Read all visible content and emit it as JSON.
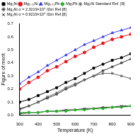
{
  "chart_data": {
    "type": "line",
    "x_label": "Temperature (K)",
    "y_label": "Figure of merit",
    "x": [
      300,
      350,
      400,
      450,
      500,
      550,
      600,
      650,
      700,
      750,
      800,
      850,
      900
    ],
    "xlim": [
      300,
      900
    ],
    "xticks": [
      300,
      400,
      500,
      600,
      700,
      800,
      900
    ],
    "ylim": [
      0,
      0.7
    ],
    "yticks": [
      {
        "value": 0,
        "label": "0.0"
      },
      0.1,
      0.2,
      0.3,
      0.4,
      0.5,
      0.6,
      0.7
    ],
    "legend": "top",
    "series": [
      {
        "name": "Mg₂Ni",
        "color": "#000000",
        "marker": "square",
        "line_style": "solid",
        "values": [
          0.1,
          0.12,
          0.15,
          0.18,
          0.21,
          0.25,
          0.28,
          0.32,
          0.36,
          0.39,
          0.42,
          0.44,
          0.47
        ]
      },
      {
        "name": "Mg₁.₇₅Ni",
        "color": "#e8141c",
        "marker": "circle",
        "line_style": "solid",
        "values": [
          0.2,
          0.25,
          0.29,
          0.34,
          0.37,
          0.41,
          0.45,
          0.48,
          0.52,
          0.55,
          0.58,
          0.6,
          0.62
        ]
      },
      {
        "name": "Mg₁.₇₅Pb",
        "color": "#3b3bf0",
        "marker": "triangle",
        "line_style": "solid",
        "values": [
          0.24,
          0.29,
          0.33,
          0.38,
          0.42,
          0.46,
          0.5,
          0.54,
          0.57,
          0.6,
          0.63,
          0.65,
          0.67
        ]
      },
      {
        "name": "Mg₂Pb",
        "color": "#22b022",
        "marker": "diamond",
        "line_style": "solid",
        "values": [
          0.02,
          0.02,
          0.02,
          0.03,
          0.03,
          0.03,
          0.04,
          0.04,
          0.05,
          0.05,
          0.06,
          0.06,
          0.07
        ]
      },
      {
        "name": "Mg₂Ni Standard Ref. [8]",
        "color": "#666666",
        "marker": "star",
        "line_style": "solid",
        "values": [
          0.04,
          0.07,
          0.1,
          0.14,
          0.17,
          0.21,
          0.24,
          0.27,
          0.3,
          0.32,
          0.32,
          0.3,
          0.28
        ]
      },
      {
        "name": "Mg₂Ni σ = 2.3219×10⁴ /Ωm Ref.[8]",
        "color": "#333333",
        "marker": "star",
        "line_style": "solid",
        "values": [
          0.05,
          0.07,
          0.1,
          0.13,
          0.16,
          0.2,
          0.23,
          0.27,
          0.3,
          0.34,
          0.37,
          0.4,
          0.43
        ]
      },
      {
        "name": "Mg₂Ni σ = 0.9219×10⁴ /Ωm Ref.[8]",
        "color": "#111111",
        "marker": "cross",
        "line_style": "solid",
        "values": [
          0.01,
          0.02,
          0.02,
          0.03,
          0.03,
          0.04,
          0.04,
          0.05,
          0.05,
          0.06,
          0.06,
          0.07,
          0.07
        ]
      }
    ]
  }
}
